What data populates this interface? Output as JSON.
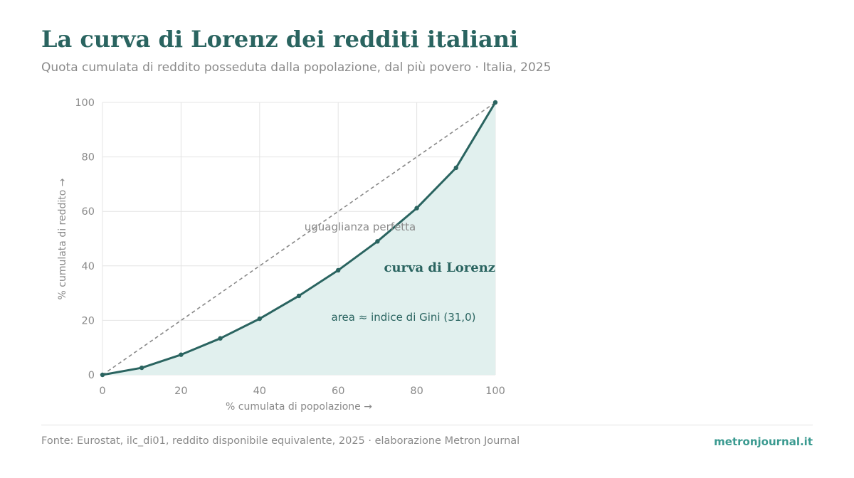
{
  "header": {
    "title": "La curva di Lorenz dei redditi italiani",
    "subtitle": "Quota cumulata di reddito posseduta dalla popolazione, dal più povero · Italia, 2025"
  },
  "footer": {
    "source": "Fonte: Eurostat, ilc_di01, reddito disponibile equivalente, 2025 · elaborazione Metron Journal",
    "brand": "metronjournal.it"
  },
  "colors": {
    "accent": "#2a6460",
    "fill": "#e1f0ee",
    "equality_line": "#888888",
    "grid": "#e4e4e4",
    "muted_text": "#8a8a8a",
    "brand": "#3a9a90"
  },
  "chart_data": {
    "type": "line",
    "xlabel": "% cumulata di popolazione →",
    "ylabel": "% cumulata di reddito →",
    "xlim": [
      0,
      100
    ],
    "ylim": [
      0,
      100
    ],
    "xticks": [
      "0",
      "20",
      "40",
      "60",
      "80",
      "100"
    ],
    "yticks": [
      "0",
      "20",
      "40",
      "60",
      "80",
      "100"
    ],
    "grid": true,
    "series": [
      {
        "name": "curva di Lorenz",
        "style": "solid-with-markers-and-area",
        "x": [
          0,
          10,
          20,
          30,
          40,
          50,
          60,
          70,
          80,
          90,
          100
        ],
        "y": [
          0,
          2.6,
          7.4,
          13.4,
          20.6,
          29.0,
          38.4,
          49.0,
          61.2,
          76.0,
          100
        ]
      },
      {
        "name": "uguaglianza perfetta",
        "style": "dashed",
        "x": [
          0,
          100
        ],
        "y": [
          0,
          100
        ]
      }
    ],
    "annotations": {
      "lorenz_label": "curva di Lorenz",
      "equality_label": "uguaglianza perfetta",
      "area_label": "area ≈ indice di Gini (31,0)"
    }
  }
}
